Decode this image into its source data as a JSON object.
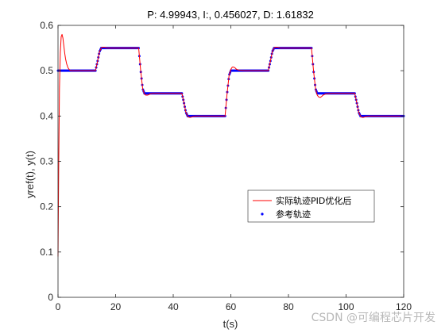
{
  "chart_data": {
    "type": "line",
    "title": "P: 4.99943, I:, 0.456027, D: 1.61832",
    "xlabel": "t(s)",
    "ylabel": "yref(t), y(t)",
    "xlim": [
      0,
      120
    ],
    "ylim": [
      0,
      0.6
    ],
    "xticks": [
      0,
      20,
      40,
      60,
      80,
      100,
      120
    ],
    "yticks": [
      0,
      0.1,
      0.2,
      0.3,
      0.4,
      0.5,
      0.6
    ],
    "grid": false,
    "legend_position": "center-right",
    "series": [
      {
        "name": "实际轨迹PID优化后",
        "style": "line",
        "color": "#ff0000",
        "x": [
          0,
          0.25,
          0.5,
          0.8,
          1.1,
          1.4,
          1.7,
          2.0,
          2.3,
          2.6,
          3.0,
          3.5,
          4.0,
          4.5,
          5.0,
          6.0,
          8.0,
          10.0,
          12.0,
          13.0,
          13.7,
          14.4,
          15.0,
          15.5,
          16.0,
          16.5,
          17.0,
          18.0,
          20.0,
          24.0,
          27.0,
          28.0,
          28.7,
          29.4,
          30.0,
          30.5,
          31.0,
          31.5,
          32.0,
          33.0,
          35.0,
          40.0,
          43.0,
          43.7,
          44.4,
          45.0,
          45.5,
          46.0,
          46.5,
          47.0,
          48.0,
          50.0,
          55.0,
          57.0,
          58.0,
          58.7,
          59.4,
          60.0,
          60.5,
          61.0,
          61.5,
          62.0,
          63.0,
          65.0,
          70.0,
          73.0,
          73.7,
          74.4,
          75.0,
          75.5,
          76.0,
          76.5,
          77.0,
          78.0,
          80.0,
          85.0,
          88.0,
          88.7,
          89.4,
          90.0,
          90.5,
          91.0,
          91.5,
          92.0,
          93.0,
          95.0,
          100.0,
          103.0,
          103.7,
          104.4,
          105.0,
          105.5,
          106.0,
          106.5,
          107.0,
          108.0,
          110.0,
          115.0,
          120.0
        ],
        "y": [
          0.09,
          0.3,
          0.46,
          0.54,
          0.575,
          0.58,
          0.572,
          0.556,
          0.54,
          0.527,
          0.515,
          0.506,
          0.502,
          0.5,
          0.5,
          0.5,
          0.5,
          0.5,
          0.5,
          0.5,
          0.52,
          0.542,
          0.55,
          0.552,
          0.552,
          0.551,
          0.55,
          0.55,
          0.55,
          0.55,
          0.55,
          0.55,
          0.5,
          0.46,
          0.448,
          0.446,
          0.446,
          0.447,
          0.449,
          0.45,
          0.45,
          0.45,
          0.45,
          0.43,
          0.408,
          0.4,
          0.397,
          0.397,
          0.398,
          0.399,
          0.4,
          0.4,
          0.4,
          0.4,
          0.4,
          0.45,
          0.49,
          0.503,
          0.508,
          0.508,
          0.506,
          0.503,
          0.501,
          0.5,
          0.5,
          0.5,
          0.52,
          0.542,
          0.55,
          0.552,
          0.552,
          0.551,
          0.55,
          0.55,
          0.55,
          0.55,
          0.55,
          0.5,
          0.46,
          0.446,
          0.442,
          0.441,
          0.443,
          0.446,
          0.449,
          0.45,
          0.45,
          0.45,
          0.43,
          0.408,
          0.4,
          0.397,
          0.397,
          0.398,
          0.399,
          0.4,
          0.4,
          0.4,
          0.4
        ]
      },
      {
        "name": "参考轨迹",
        "style": "points",
        "color": "#0000ff",
        "x": [
          0,
          13,
          13.7,
          14.4,
          15,
          28,
          28.7,
          29.4,
          30,
          43,
          43.7,
          44.4,
          45,
          58,
          58.7,
          59.4,
          60,
          73,
          73.7,
          74.4,
          75,
          88,
          88.7,
          89.4,
          90,
          103,
          103.7,
          104.4,
          105,
          120
        ],
        "y": [
          0.5,
          0.5,
          0.52,
          0.542,
          0.55,
          0.55,
          0.5,
          0.46,
          0.45,
          0.45,
          0.43,
          0.408,
          0.4,
          0.4,
          0.45,
          0.49,
          0.5,
          0.5,
          0.52,
          0.542,
          0.55,
          0.55,
          0.5,
          0.46,
          0.45,
          0.45,
          0.43,
          0.408,
          0.4,
          0.4
        ]
      }
    ]
  },
  "watermark": "CSDN @可编程芯片开发"
}
